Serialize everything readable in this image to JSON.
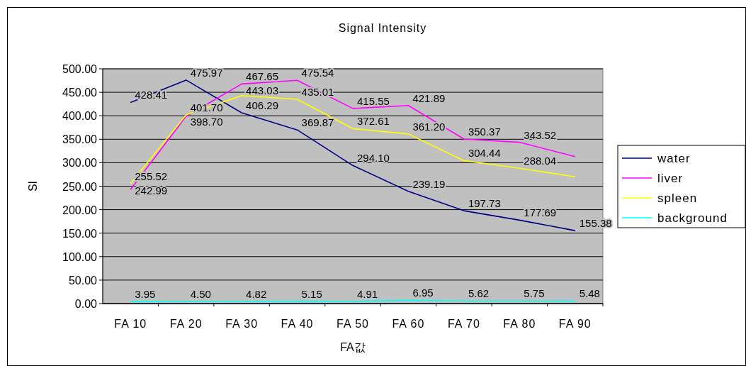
{
  "chart_data": {
    "type": "line",
    "title": "Signal Intensity",
    "xlabel": "FA값",
    "ylabel": "SI",
    "categories": [
      "FA 10",
      "FA 20",
      "FA 30",
      "FA 40",
      "FA 50",
      "FA 60",
      "FA 70",
      "FA 80",
      "FA 90"
    ],
    "series": [
      {
        "name": "water",
        "color": "#000080",
        "values": [
          428.41,
          475.97,
          406.29,
          369.87,
          294.1,
          239.19,
          197.73,
          177.69,
          155.38
        ],
        "value_labels": [
          "428.41",
          "475.97",
          "406.29",
          "369.87",
          "294.10",
          "239.19",
          "197.73",
          "177.69",
          "155.38"
        ]
      },
      {
        "name": "liver",
        "color": "#ff00ff",
        "values": [
          242.99,
          398.7,
          467.65,
          475.54,
          415.55,
          421.89,
          350.37,
          343.52,
          313
        ],
        "value_labels": [
          "242.99",
          "398.70",
          "467.65",
          "475.54",
          "415.55",
          "421.89",
          "350.37",
          "343.52",
          null
        ]
      },
      {
        "name": "spleen",
        "color": "#ffff00",
        "values": [
          255.52,
          401.7,
          443.03,
          435.01,
          372.61,
          361.2,
          304.44,
          288.04,
          270
        ],
        "value_labels": [
          "255.52",
          "401.70",
          "443.03",
          "435.01",
          "372.61",
          "361.20",
          "304.44",
          "288.04",
          null
        ]
      },
      {
        "name": "background",
        "color": "#00ffff",
        "values": [
          3.95,
          4.5,
          4.82,
          5.15,
          4.91,
          6.95,
          5.62,
          5.75,
          5.48
        ],
        "value_labels": [
          "3.95",
          "4.50",
          "4.82",
          "5.15",
          "4.91",
          "6.95",
          "5.62",
          "5.75",
          "5.48"
        ]
      }
    ],
    "ylim": [
      0,
      500
    ],
    "yticks": [
      {
        "value": 0,
        "label": "0.00"
      },
      {
        "value": 50,
        "label": "50.00"
      },
      {
        "value": 100,
        "label": "100.00"
      },
      {
        "value": 150,
        "label": "150.00"
      },
      {
        "value": 200,
        "label": "200.00"
      },
      {
        "value": 250,
        "label": "250.00"
      },
      {
        "value": 300,
        "label": "300.00"
      },
      {
        "value": 350,
        "label": "350.00"
      },
      {
        "value": 400,
        "label": "400.00"
      },
      {
        "value": 450,
        "label": "450.00"
      },
      {
        "value": 500,
        "label": "500.00"
      }
    ],
    "grid": "y",
    "legend": "right",
    "marker": "none",
    "line_style": "solid"
  }
}
